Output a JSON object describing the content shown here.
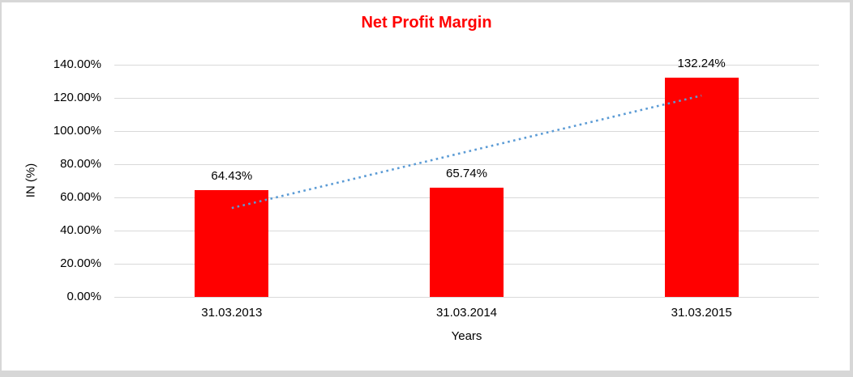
{
  "frame": {
    "page_background": "#D7D7D7",
    "chart_background": "#FFFFFF"
  },
  "chart_data": {
    "type": "bar",
    "title": "Net Profit Margin",
    "title_color": "#FF0000",
    "categories": [
      "31.03.2013",
      "31.03.2014",
      "31.03.2015"
    ],
    "values": [
      64.43,
      65.74,
      132.24
    ],
    "data_labels": [
      "64.43%",
      "65.74%",
      "132.24%"
    ],
    "bar_color": "#FF0000",
    "xlabel": "Years",
    "ylabel": "IN (%)",
    "ylim": [
      0,
      140
    ],
    "ytick_values": [
      140,
      120,
      100,
      80,
      60,
      40,
      20,
      0
    ],
    "ytick_labels": [
      "140.00%",
      "120.00%",
      "100.00%",
      "80.00%",
      "60.00%",
      "40.00%",
      "20.00%",
      "0.00%"
    ],
    "grid": true,
    "gridline_color": "#D9D9D9",
    "legend": "none",
    "trendline": {
      "style": "dotted",
      "color": "#5B9BD5",
      "from_category_index": 0,
      "to_category_index": 2,
      "from_value": 53.6,
      "to_value": 121.4
    }
  }
}
